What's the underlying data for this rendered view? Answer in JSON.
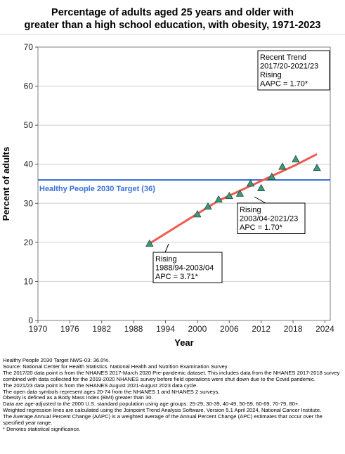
{
  "chart_data": {
    "type": "scatter",
    "title_line1": "Percentage of adults aged 25 years and older with",
    "title_line2": "greater than a high school education, with obesity, 1971-2023",
    "xlabel": "Year",
    "ylabel": "Percent of adults",
    "xlim": [
      1970,
      2025
    ],
    "ylim": [
      0,
      70
    ],
    "xticks": [
      1970,
      1976,
      1982,
      1988,
      1994,
      2000,
      2006,
      2012,
      2018,
      2024
    ],
    "yticks": [
      0,
      10,
      20,
      30,
      40,
      50,
      60,
      70
    ],
    "grid": "horizontal",
    "point_color": "#3a9a7a",
    "trend_color": "#f05a50",
    "target_color": "#3a6fd8",
    "points": [
      {
        "x": 1991,
        "y": 19.7
      },
      {
        "x": 2000,
        "y": 27.2
      },
      {
        "x": 2002,
        "y": 29.2
      },
      {
        "x": 2004,
        "y": 31.0
      },
      {
        "x": 2006,
        "y": 31.9
      },
      {
        "x": 2008,
        "y": 32.5
      },
      {
        "x": 2010,
        "y": 35.1
      },
      {
        "x": 2012,
        "y": 33.9
      },
      {
        "x": 2014,
        "y": 36.8
      },
      {
        "x": 2016,
        "y": 39.4
      },
      {
        "x": 2018.5,
        "y": 41.3
      },
      {
        "x": 2022.5,
        "y": 39.1
      }
    ],
    "trend_line": [
      {
        "x": 1991,
        "y": 19.7
      },
      {
        "x": 2004,
        "y": 30.7
      },
      {
        "x": 2018.5,
        "y": 39.8
      },
      {
        "x": 2022.5,
        "y": 42.6
      }
    ],
    "target": {
      "value": 36,
      "label": "Healthy People 2030 Target (36)"
    },
    "annotations": [
      {
        "lines": [
          "Recent Trend",
          "2017/20-2021/23",
          "Rising",
          "AAPC =  1.70*"
        ]
      },
      {
        "lines": [
          "Rising",
          "2003/04-2021/23",
          "APC =  1.70*"
        ]
      },
      {
        "lines": [
          "Rising",
          "1988/94-2003/04",
          "APC =  3.71*"
        ]
      }
    ]
  },
  "footnotes": [
    "Healthy People 2030 Target NWS-03: 36.0%.",
    "Source: National Center for Health Statistics. National Health and Nutrition Examination Survey.",
    "The 2017/20 data point is from the NHANES 2017-March 2020 Pre-pandemic dataset. This includes data from the NHANES 2017-2018 survey combined with data collected for the 2019-2020 NHANES survey before field operations were shut down due to the Covid pandemic.",
    "The 2021/23 data point is from the NHANES August 2021-August 2023 data cycle.",
    "The open data symbols represent ages 20-74 from the NHANES 1 and NHANES 2 surveys.",
    "Obesity is defined as a Body Mass Index (BMI) greater than 30.",
    "Data are age-adjusted to the 2000 U.S. standard population using age groups: 25-29, 30-39, 40-49, 50-59, 60-69, 70-79, 80+.",
    "Weighted regression lines are calculated using the Joinpoint Trend Analysis Software, Version 5.1 April 2024, National Cancer Institute.",
    "The Average Annual Percent Change (AAPC) is a weighted average of the Annual Percent Change (APC) estimates that occur over the specified year range.",
    "* Denotes statistical significance."
  ]
}
